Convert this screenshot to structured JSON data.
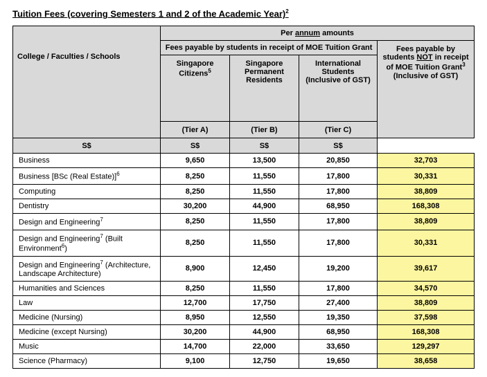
{
  "title_html": "Tuition Fees (covering Semesters 1 and 2 of the Academic Year)<sup>2</sup>",
  "headers": {
    "rowhead_html": "College / Faculties / Schools",
    "per_annum_html": "Per <span class=\"annum-underline\">annum</span> amounts",
    "moe_grant": "Fees payable by students in receipt of MOE Tuition Grant",
    "no_grant_html": "Fees payable by students <u>NOT</u> in receipt of MOE Tuition Grant<sup>3</sup><br>(Inclusive of GST)",
    "col_a_html": "Singapore Citizens<sup>5</sup>",
    "col_b_html": "Singapore Permanent Residents",
    "col_c_html": "International Students<br>(Inclusive of GST)",
    "tier_a": "(Tier A)",
    "tier_b": "(Tier B)",
    "tier_c": "(Tier C)",
    "currency": "S$"
  },
  "rows": [
    {
      "label_html": "Business",
      "a": "9,650",
      "b": "13,500",
      "c": "20,850",
      "d": "32,703"
    },
    {
      "label_html": "Business [BSc (Real Estate)]<sup>6</sup>",
      "a": "8,250",
      "b": "11,550",
      "c": "17,800",
      "d": "30,331"
    },
    {
      "label_html": "Computing",
      "a": "8,250",
      "b": "11,550",
      "c": "17,800",
      "d": "38,809"
    },
    {
      "label_html": "Dentistry",
      "a": "30,200",
      "b": "44,900",
      "c": "68,950",
      "d": "168,308"
    },
    {
      "label_html": "Design and Engineering<sup>7</sup>",
      "a": "8,250",
      "b": "11,550",
      "c": "17,800",
      "d": "38,809"
    },
    {
      "label_html": "Design and Engineering<sup>7</sup> (Built Environment<sup>6</sup>)",
      "a": "8,250",
      "b": "11,550",
      "c": "17,800",
      "d": "30,331"
    },
    {
      "label_html": "Design and Engineering<sup>7</sup> (Architecture, Landscape Architecture)",
      "a": "8,900",
      "b": "12,450",
      "c": "19,200",
      "d": "39,617"
    },
    {
      "label_html": "Humanities and Sciences",
      "a": "8,250",
      "b": "11,550",
      "c": "17,800",
      "d": "34,570"
    },
    {
      "label_html": "Law",
      "a": "12,700",
      "b": "17,750",
      "c": "27,400",
      "d": "38,809"
    },
    {
      "label_html": "Medicine (Nursing)",
      "a": "8,950",
      "b": "12,550",
      "c": "19,350",
      "d": "37,598"
    },
    {
      "label_html": "Medicine (except Nursing)",
      "a": "30,200",
      "b": "44,900",
      "c": "68,950",
      "d": "168,308"
    },
    {
      "label_html": "Music",
      "a": "14,700",
      "b": "22,000",
      "c": "33,650",
      "d": "129,297"
    },
    {
      "label_html": "Science (Pharmacy)",
      "a": "9,100",
      "b": "12,750",
      "c": "19,650",
      "d": "38,658"
    }
  ],
  "colors": {
    "header_bg": "#d9d9d9",
    "highlight_bg": "#fcf6a0",
    "border": "#000000"
  },
  "col_widths_pct": [
    32,
    15,
    15,
    17,
    21
  ]
}
